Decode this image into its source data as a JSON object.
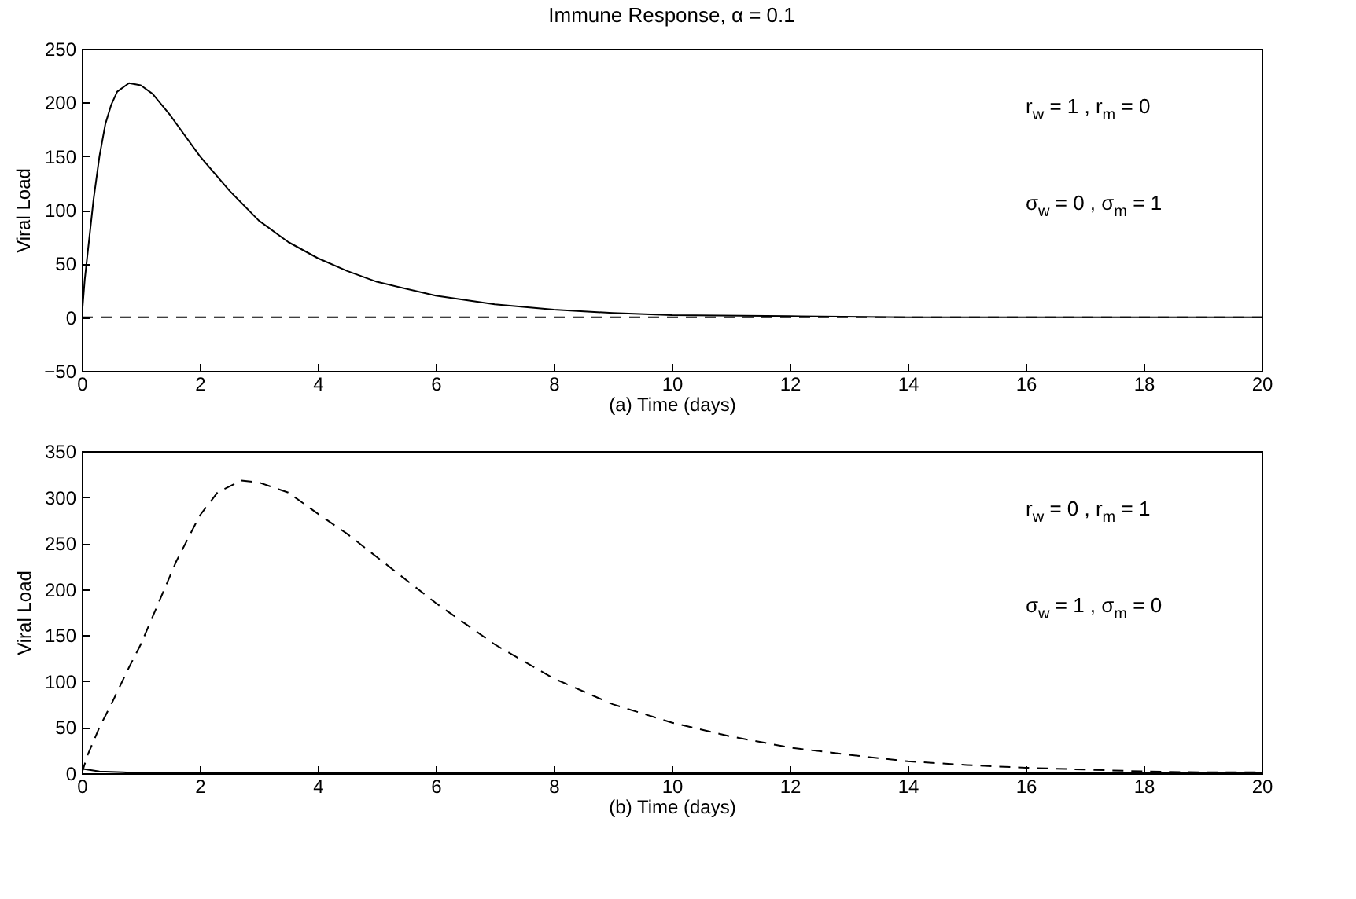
{
  "chart_data": [
    {
      "type": "line",
      "title": "Immune Response,  α = 0.1",
      "xlabel": "(a) Time (days)",
      "ylabel": "Viral Load",
      "annotations": [
        "r$_{w}$ = 1 , r$_{m}$ = 0",
        "σ$_{w}$ = 0 , σ$_{m}$ = 1"
      ],
      "xlim": [
        0,
        20
      ],
      "xticks": [
        0,
        2,
        4,
        6,
        8,
        10,
        12,
        14,
        16,
        18,
        20
      ],
      "ylim": [
        -50,
        250
      ],
      "yticks": [
        -50,
        0,
        50,
        100,
        150,
        200,
        250
      ],
      "series": [
        {
          "color": "#000000",
          "line_style": "solid",
          "x": [
            0,
            0.05,
            0.1,
            0.2,
            0.3,
            0.4,
            0.5,
            0.6,
            0.8,
            1.0,
            1.2,
            1.5,
            2,
            2.5,
            3,
            3.5,
            4,
            4.5,
            5,
            6,
            7,
            8,
            9,
            10,
            12,
            14,
            16,
            20
          ],
          "values": [
            0,
            35,
            60,
            110,
            150,
            180,
            198,
            210,
            218,
            216,
            208,
            188,
            150,
            118,
            90,
            70,
            55,
            43,
            33,
            20,
            12,
            7,
            4,
            2,
            1,
            0,
            0,
            0
          ]
        },
        {
          "color": "#000000",
          "line_style": "dashed",
          "x": [
            0,
            20
          ],
          "values": [
            0,
            0
          ]
        }
      ]
    },
    {
      "type": "line",
      "xlabel": "(b) Time (days)",
      "ylabel": "Viral Load",
      "annotations": [
        "r$_{w}$ = 0 , r$_{m}$ = 1",
        "σ$_{w}$ = 1 , σ$_{m}$ = 0"
      ],
      "xlim": [
        0,
        20
      ],
      "xticks": [
        0,
        2,
        4,
        6,
        8,
        10,
        12,
        14,
        16,
        18,
        20
      ],
      "ylim": [
        0,
        350
      ],
      "yticks": [
        0,
        50,
        100,
        150,
        200,
        250,
        300,
        350
      ],
      "series": [
        {
          "color": "#000000",
          "line_style": "dashed",
          "x": [
            0,
            0.1,
            0.3,
            0.5,
            0.8,
            1,
            1.3,
            1.6,
            2,
            2.3,
            2.7,
            3,
            3.5,
            4,
            4.5,
            5,
            6,
            7,
            8,
            9,
            10,
            11,
            12,
            13,
            14,
            15,
            16,
            17,
            18,
            19,
            20
          ],
          "values": [
            0,
            20,
            50,
            75,
            115,
            140,
            185,
            230,
            280,
            305,
            318,
            316,
            305,
            282,
            260,
            235,
            185,
            140,
            103,
            75,
            55,
            40,
            28,
            20,
            13,
            9,
            6,
            4,
            2,
            1,
            1
          ]
        },
        {
          "color": "#000000",
          "line_style": "solid",
          "x": [
            0,
            0.3,
            0.7,
            1,
            20
          ],
          "values": [
            5,
            2,
            1,
            0,
            0
          ]
        }
      ]
    }
  ]
}
